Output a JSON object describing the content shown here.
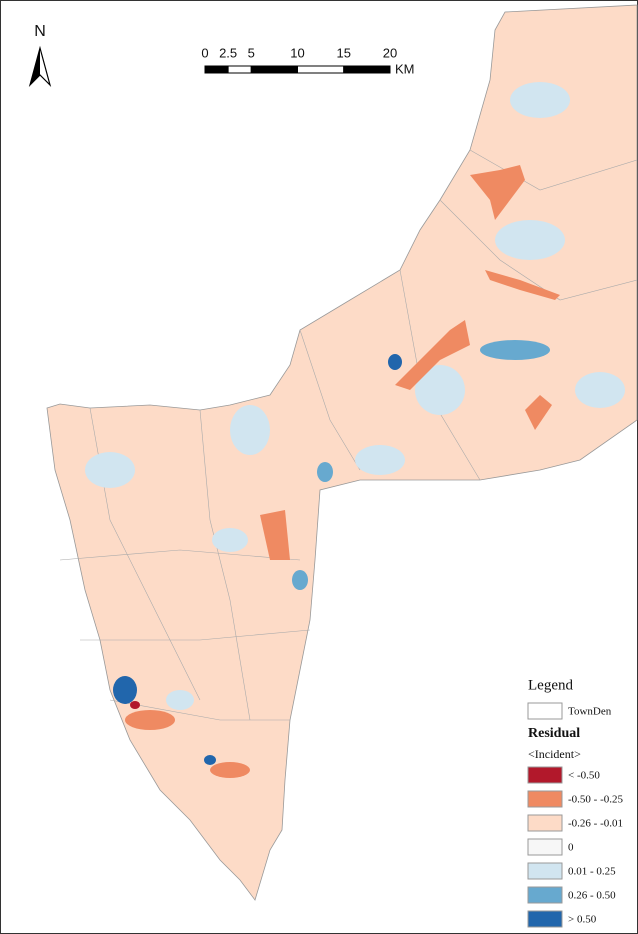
{
  "north_arrow": {
    "label": "N"
  },
  "scale_bar": {
    "ticks": [
      0,
      2.5,
      5,
      10,
      15,
      20
    ],
    "unit": "KM"
  },
  "legend": {
    "title": "Legend",
    "boundary_label": "TownDen",
    "field_title": "Residual",
    "field_subtitle": "<Incident>",
    "classes": [
      {
        "label": "< -0.50",
        "color": "#b2182b"
      },
      {
        "label": "-0.50 - -0.25",
        "color": "#ef8a62"
      },
      {
        "label": "-0.26 - -0.01",
        "color": "#fddbc7"
      },
      {
        "label": "0",
        "color": "#f7f7f7"
      },
      {
        "label": "0.01 - 0.25",
        "color": "#d1e5f0"
      },
      {
        "label": "0.26 - 0.50",
        "color": "#67a9cf"
      },
      {
        "label": "> 0.50",
        "color": "#2166ac"
      }
    ]
  }
}
